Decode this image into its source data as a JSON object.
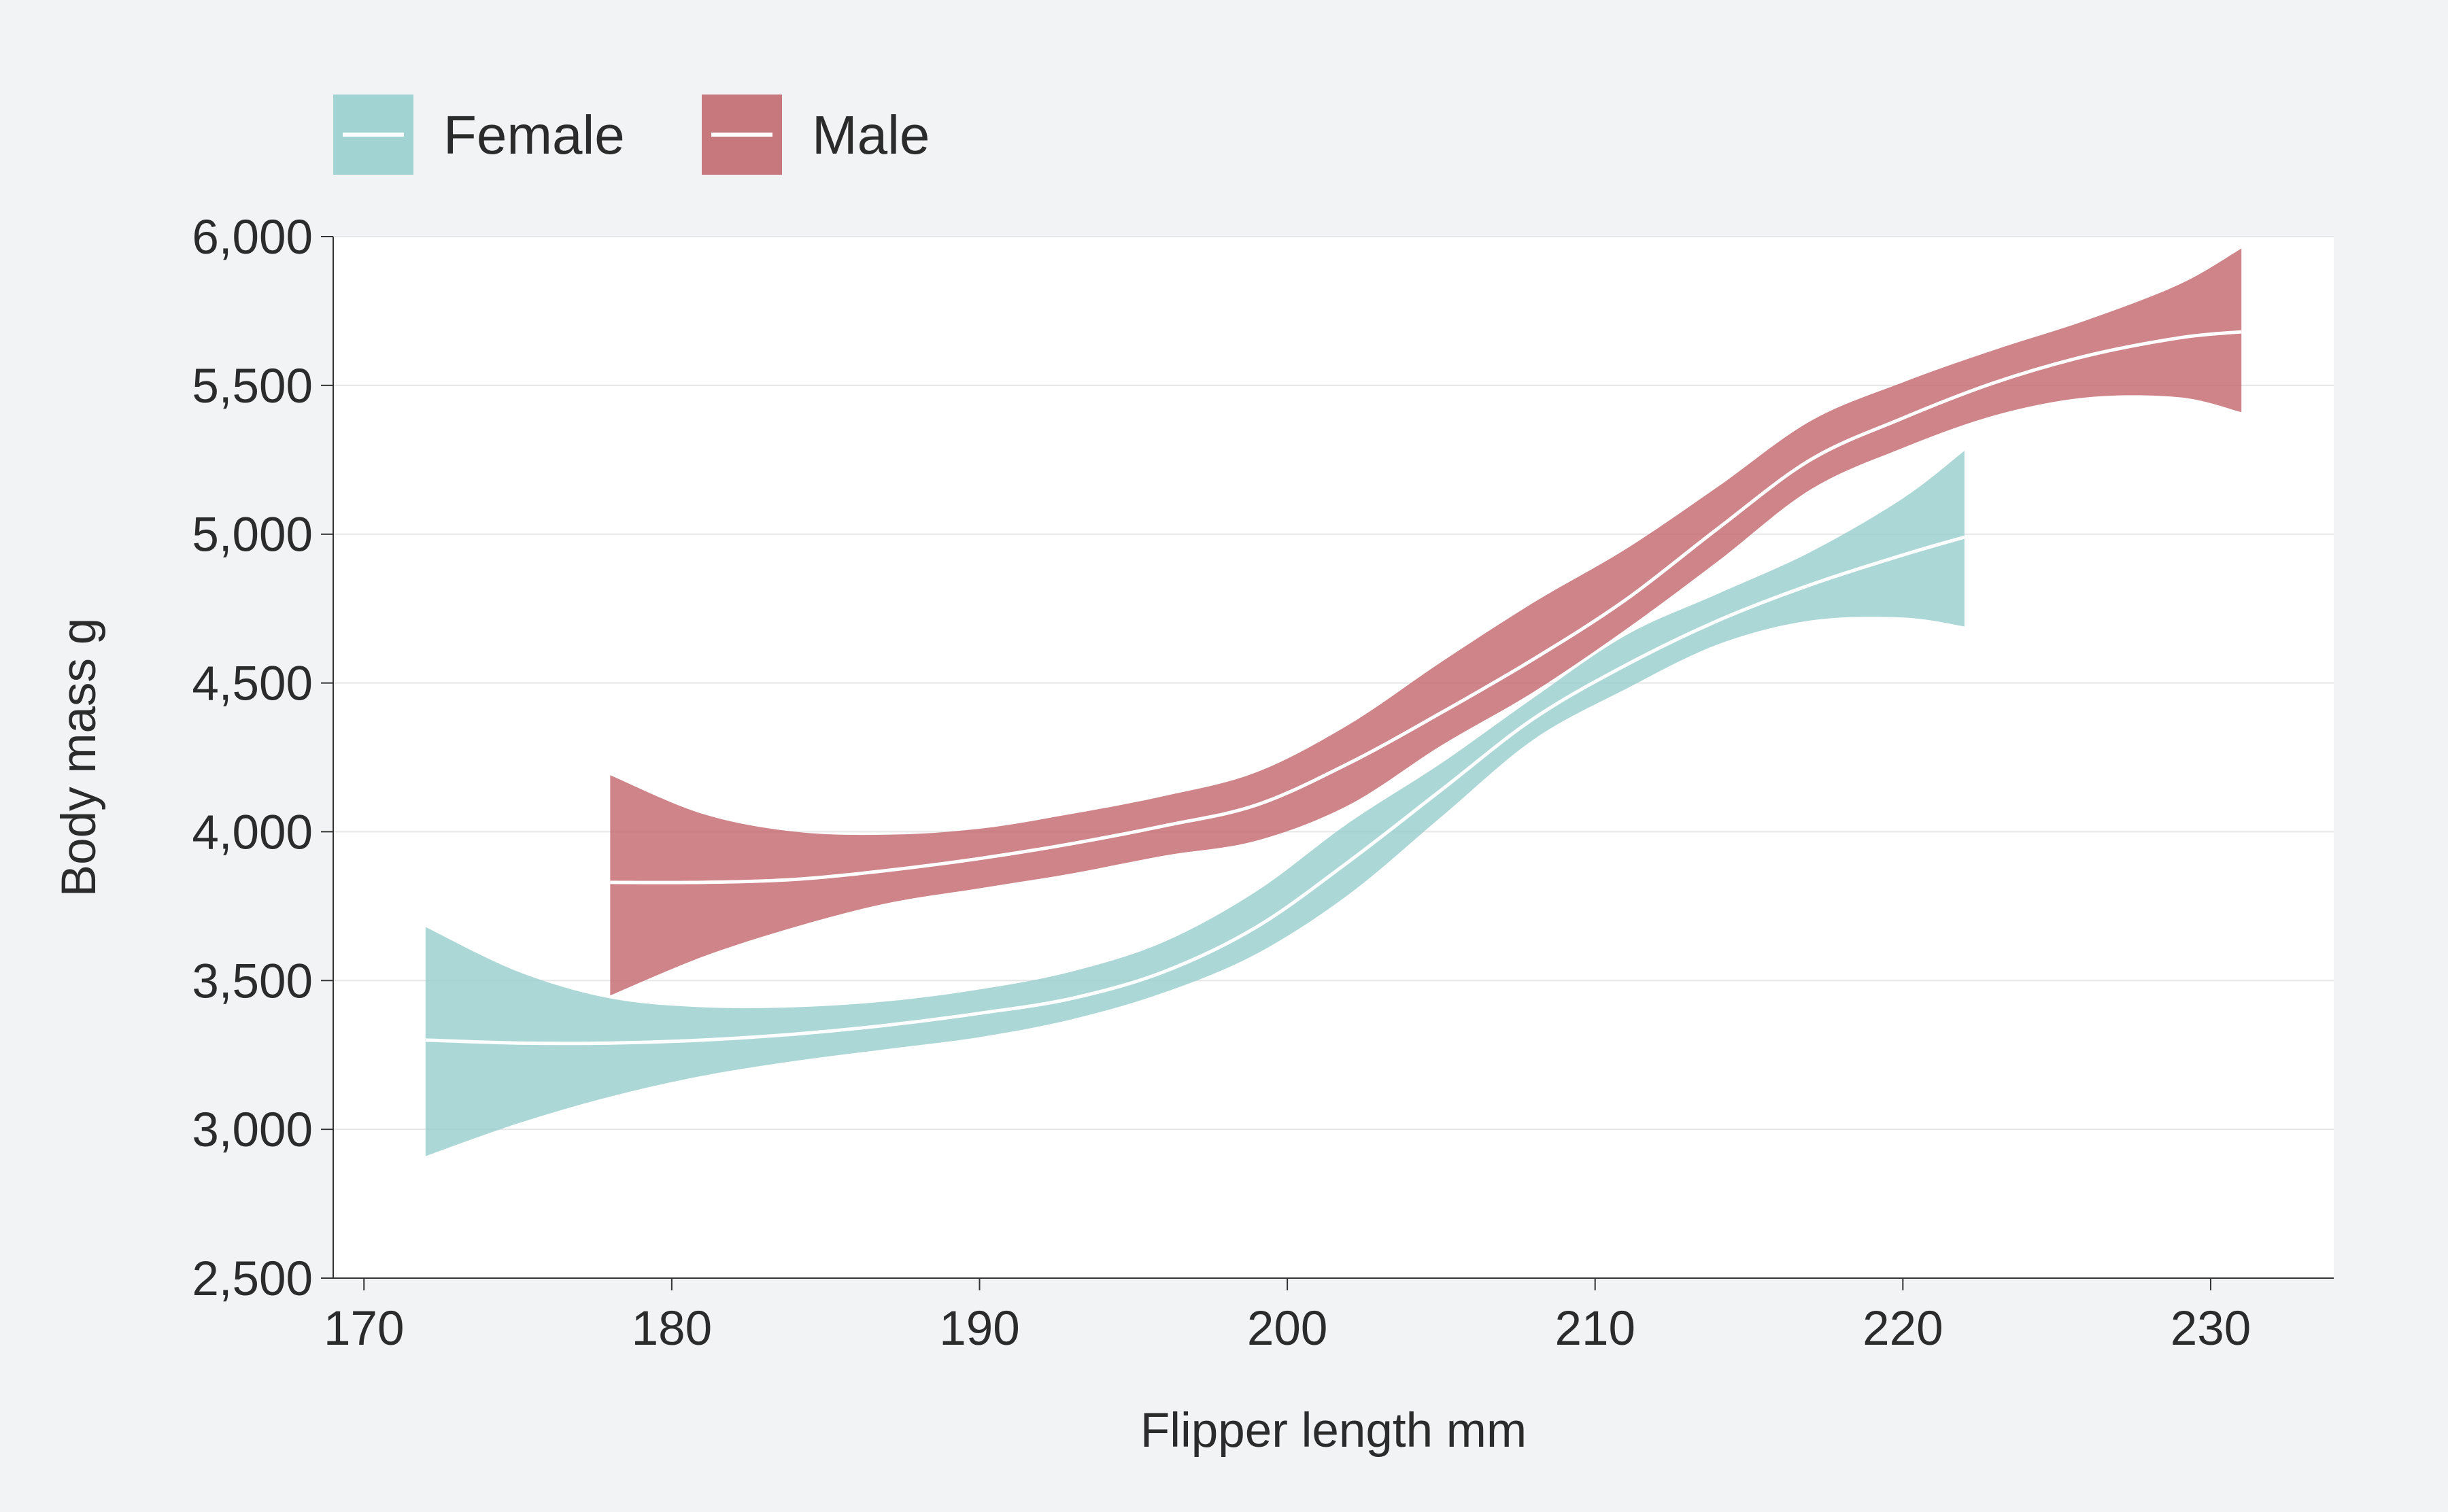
{
  "chart_data": {
    "type": "line",
    "xlabel": "Flipper length mm",
    "ylabel": "Body mass g",
    "xlim": [
      169,
      234
    ],
    "ylim": [
      2500,
      6000
    ],
    "xticks": [
      170,
      180,
      190,
      200,
      210,
      220,
      230
    ],
    "xtick_labels": [
      "170",
      "180",
      "190",
      "200",
      "210",
      "220",
      "230"
    ],
    "yticks": [
      2500,
      3000,
      3500,
      4000,
      4500,
      5000,
      5500,
      6000
    ],
    "ytick_labels": [
      "2,500",
      "3,000",
      "3,500",
      "4,000",
      "4,500",
      "5,000",
      "5,500",
      "6,000"
    ],
    "grid": true,
    "legend_position": "top-left",
    "series": [
      {
        "name": "Female",
        "color": "#93cccb",
        "x": [
          172,
          175,
          178,
          181,
          184,
          187,
          190,
          193,
          196,
          199,
          202,
          205,
          208,
          211,
          214,
          217,
          220,
          222
        ],
        "y": [
          3300,
          3290,
          3290,
          3300,
          3320,
          3350,
          3390,
          3440,
          3530,
          3680,
          3900,
          4140,
          4380,
          4560,
          4710,
          4830,
          4930,
          4990
        ],
        "lower": [
          2910,
          3020,
          3110,
          3180,
          3230,
          3270,
          3310,
          3370,
          3460,
          3590,
          3790,
          4050,
          4310,
          4480,
          4630,
          4710,
          4720,
          4690
        ],
        "upper": [
          3680,
          3530,
          3440,
          3410,
          3410,
          3430,
          3470,
          3530,
          3630,
          3800,
          4030,
          4230,
          4450,
          4660,
          4800,
          4940,
          5120,
          5280
        ]
      },
      {
        "name": "Male",
        "color": "#c06166",
        "x": [
          178,
          181,
          184,
          187,
          190,
          193,
          196,
          199,
          202,
          205,
          208,
          211,
          214,
          217,
          220,
          223,
          226,
          229,
          231
        ],
        "y": [
          3830,
          3830,
          3840,
          3870,
          3910,
          3960,
          4020,
          4090,
          4230,
          4400,
          4580,
          4780,
          5020,
          5250,
          5390,
          5510,
          5600,
          5660,
          5680
        ],
        "lower": [
          3450,
          3580,
          3680,
          3760,
          3810,
          3860,
          3920,
          3970,
          4090,
          4290,
          4470,
          4680,
          4910,
          5150,
          5290,
          5400,
          5460,
          5460,
          5410
        ],
        "upper": [
          4190,
          4060,
          4000,
          3990,
          4010,
          4060,
          4120,
          4200,
          4360,
          4570,
          4770,
          4950,
          5160,
          5380,
          5510,
          5620,
          5720,
          5840,
          5960
        ]
      }
    ]
  }
}
